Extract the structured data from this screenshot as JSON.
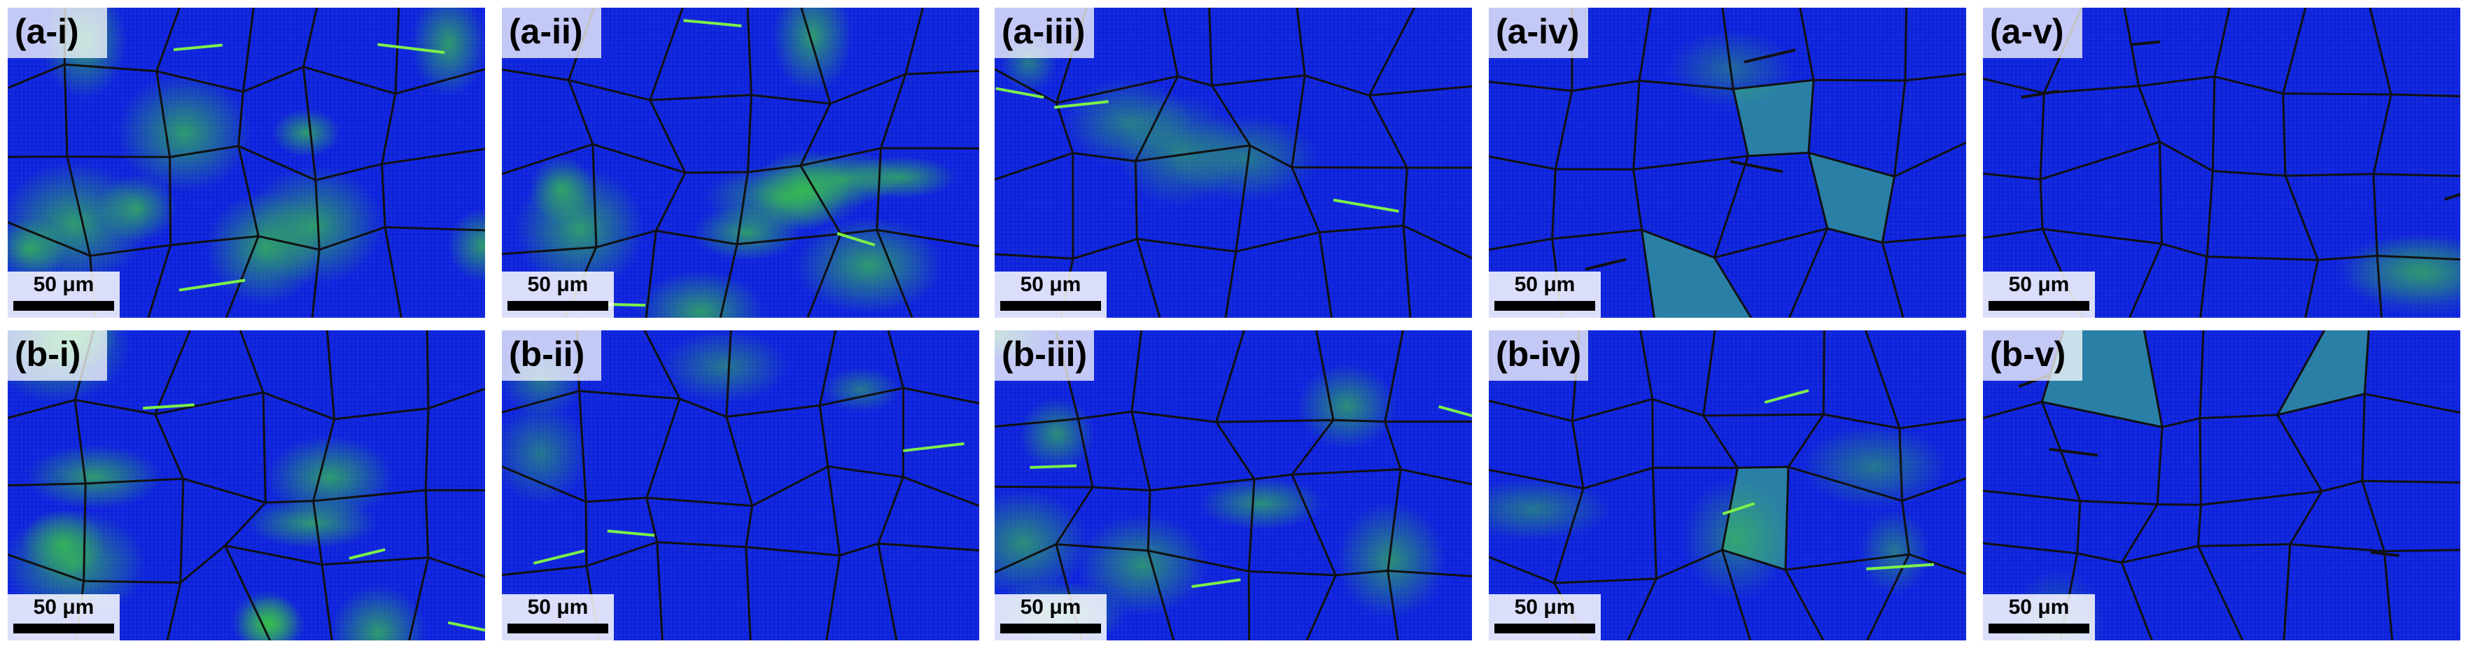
{
  "panels": [
    {
      "label": "(a-i)",
      "scale": "50 μm"
    },
    {
      "label": "(a-ii)",
      "scale": "50 μm"
    },
    {
      "label": "(a-iii)",
      "scale": "50 μm"
    },
    {
      "label": "(a-iv)",
      "scale": "50 μm"
    },
    {
      "label": "(a-v)",
      "scale": "50 μm"
    },
    {
      "label": "(b-i)",
      "scale": "50 μm"
    },
    {
      "label": "(b-ii)",
      "scale": "50 μm"
    },
    {
      "label": "(b-iii)",
      "scale": "50 μm"
    },
    {
      "label": "(b-iv)",
      "scale": "50 μm"
    },
    {
      "label": "(b-v)",
      "scale": "50 μm"
    }
  ]
}
